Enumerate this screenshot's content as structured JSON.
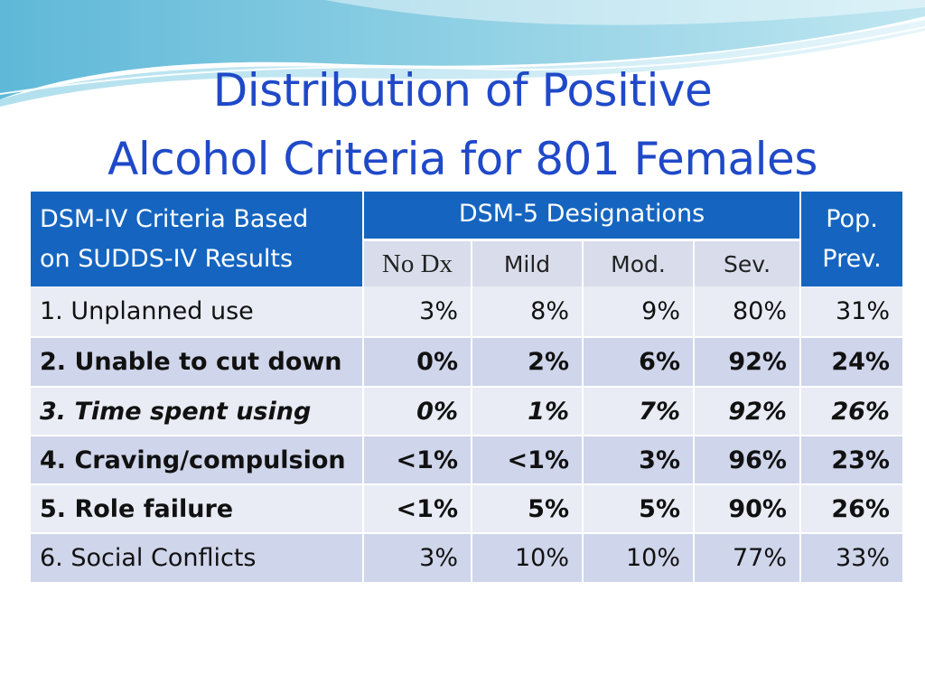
{
  "title": {
    "line1": "Distribution of Positive",
    "line2": "Alcohol Criteria for 801 Females"
  },
  "table": {
    "header": {
      "left_line1": "DSM-IV Criteria Based",
      "left_line2": "on SUDDS-IV Results",
      "group": "DSM-5 Designations",
      "right_line1": "Pop.",
      "right_line2": "Prev.",
      "sub": [
        "No Dx",
        "Mild",
        "Mod.",
        "Sev."
      ]
    },
    "rows": [
      {
        "label": "1. Unplanned use",
        "values": [
          "3%",
          "8%",
          "9%",
          "80%",
          "31%"
        ],
        "style": "normal"
      },
      {
        "label": "2. Unable to cut down",
        "values": [
          "0%",
          "2%",
          "6%",
          "92%",
          "24%"
        ],
        "style": "bold"
      },
      {
        "label": "3. Time spent using",
        "values": [
          "0%",
          "1%",
          "7%",
          "92%",
          "26%"
        ],
        "style": "bold-italic"
      },
      {
        "label": "4. Craving/compulsion",
        "values": [
          "<1%",
          "<1%",
          "3%",
          "96%",
          "23%"
        ],
        "style": "bold"
      },
      {
        "label": "5. Role failure",
        "values": [
          "<1%",
          "5%",
          "5%",
          "90%",
          "26%"
        ],
        "style": "bold"
      },
      {
        "label": "6.  Social Conflicts",
        "values": [
          "3%",
          "10%",
          "10%",
          "77%",
          "33%"
        ],
        "style": "normal"
      }
    ]
  },
  "colors": {
    "title": "#1f49c8",
    "header_bg": "#1565c0",
    "row_light": "#e9ecf5",
    "row_dark": "#cfd5ea"
  }
}
